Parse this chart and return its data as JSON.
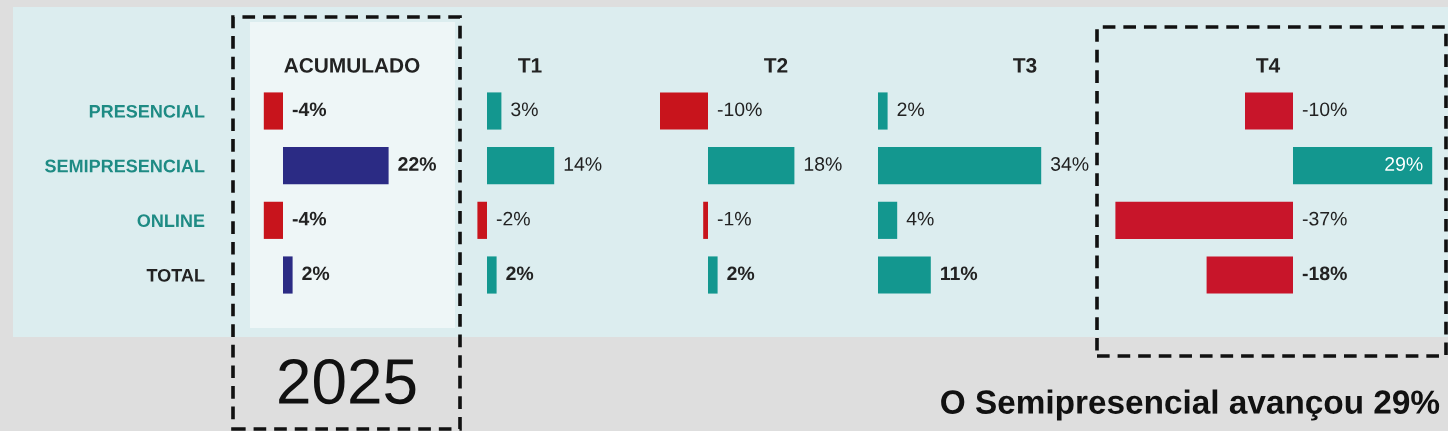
{
  "chart_data": [
    {
      "type": "bar",
      "orientation": "horizontal",
      "title": "ACUMULADO",
      "categories": [
        "PRESENCIAL",
        "SEMIPRESENCIAL",
        "ONLINE",
        "TOTAL"
      ],
      "values": [
        -4,
        22,
        -4,
        2
      ],
      "colors": [
        "#c8141c",
        "#2b2b84",
        "#c8141c",
        "#2b2b84"
      ],
      "value_labels": [
        "-4%",
        "22%",
        "-4%",
        "2%"
      ],
      "tick_labels": "y",
      "annotations": [
        "2025"
      ]
    },
    {
      "type": "bar",
      "orientation": "horizontal",
      "title": "T1",
      "categories": [
        null,
        null,
        null,
        null
      ],
      "values": [
        3,
        14,
        -2,
        2
      ],
      "colors": [
        "#13978f",
        "#13978f",
        "#c8141c",
        "#13978f"
      ],
      "value_labels": [
        "3%",
        "14%",
        "-2%",
        "2%"
      ],
      "tick_labels": false
    },
    {
      "type": "bar",
      "orientation": "horizontal",
      "title": "T2",
      "categories": [
        null,
        null,
        null,
        null
      ],
      "values": [
        -10,
        18,
        -1,
        2
      ],
      "colors": [
        "#c8141c",
        "#13978f",
        "#c8141c",
        "#13978f"
      ],
      "value_labels": [
        "-10%",
        "18%",
        "-1%",
        "2%"
      ],
      "tick_labels": false
    },
    {
      "type": "bar",
      "orientation": "horizontal",
      "title": "T3",
      "categories": [
        null,
        null,
        null,
        null
      ],
      "values": [
        2,
        34,
        4,
        11
      ],
      "colors": [
        "#13978f",
        "#13978f",
        "#13978f",
        "#13978f"
      ],
      "value_labels": [
        "2%",
        "34%",
        "4%",
        "11%"
      ],
      "tick_labels": false
    },
    {
      "type": "bar",
      "orientation": "horizontal",
      "title": "T4",
      "categories": [
        null,
        null,
        null,
        null
      ],
      "values": [
        -10,
        29,
        -37,
        -18
      ],
      "colors": [
        "#c8152a",
        "#13978f",
        "#c8152a",
        "#c8152a"
      ],
      "value_labels": [
        "-10%",
        "29%",
        "-37%",
        "-18%"
      ],
      "tick_labels": false,
      "annotations": [
        "O Semipresencial avançou 29%"
      ]
    }
  ]
}
